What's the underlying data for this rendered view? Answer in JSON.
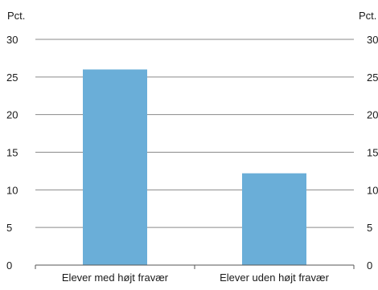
{
  "chart_data": {
    "type": "bar",
    "categories": [
      "Elever med højt fravær",
      "Elever uden højt fravær"
    ],
    "values": [
      26.0,
      12.2
    ],
    "left_axis_unit": "Pct.",
    "right_axis_unit": "Pct.",
    "ylim": [
      0,
      30
    ],
    "yticks": [
      0,
      5,
      10,
      15,
      20,
      25,
      30
    ],
    "grid": true,
    "bar_color": "#6aaed8",
    "grid_color": "#8a8a8a",
    "axis_color": "#555555"
  }
}
